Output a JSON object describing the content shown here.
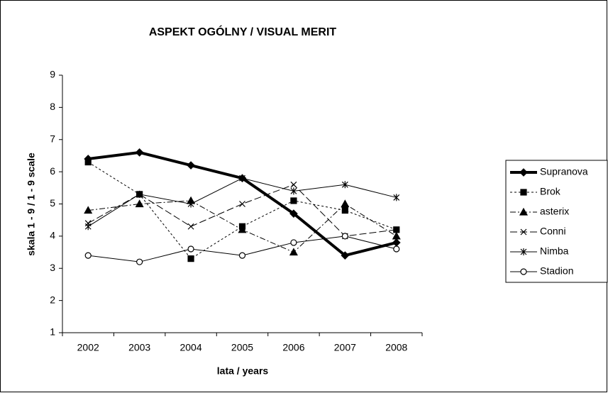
{
  "chart_data": {
    "type": "line",
    "title": "ASPEKT OGÓLNY / VISUAL MERIT",
    "xlabel": "lata / years",
    "ylabel": "skala 1 - 9 / 1 - 9 scale",
    "categories": [
      "2002",
      "2003",
      "2004",
      "2005",
      "2006",
      "2007",
      "2008"
    ],
    "ylim": [
      1,
      9
    ],
    "yticks": [
      1,
      2,
      3,
      4,
      5,
      6,
      7,
      8,
      9
    ],
    "grid": false,
    "legend": "right",
    "series": [
      {
        "name": "Supranova",
        "color": "#000000",
        "marker": "diamond",
        "dash": "solid",
        "width": 4,
        "values": [
          6.4,
          6.6,
          6.2,
          5.8,
          4.7,
          3.4,
          3.8
        ]
      },
      {
        "name": "Brok",
        "color": "#000000",
        "marker": "square",
        "dash": "dot",
        "width": 1,
        "values": [
          6.3,
          5.3,
          3.3,
          4.3,
          5.1,
          4.8,
          4.2
        ]
      },
      {
        "name": "asterix",
        "color": "#000000",
        "marker": "triangle",
        "dash": "dashdot",
        "width": 1,
        "values": [
          4.8,
          5.0,
          5.1,
          4.2,
          3.5,
          5.0,
          4.0
        ]
      },
      {
        "name": "Conni",
        "color": "#000000",
        "marker": "x",
        "dash": "longdash",
        "width": 1,
        "values": [
          4.4,
          5.3,
          4.3,
          5.0,
          5.6,
          4.0,
          4.2
        ]
      },
      {
        "name": "Nimba",
        "color": "#000000",
        "marker": "star",
        "dash": "solid",
        "width": 1,
        "values": [
          4.3,
          5.3,
          5.0,
          5.8,
          5.4,
          5.6,
          5.2
        ]
      },
      {
        "name": "Stadion",
        "color": "#000000",
        "marker": "circle",
        "dash": "solid",
        "width": 1,
        "values": [
          3.4,
          3.2,
          3.6,
          3.4,
          3.8,
          4.0,
          3.6
        ]
      }
    ]
  }
}
